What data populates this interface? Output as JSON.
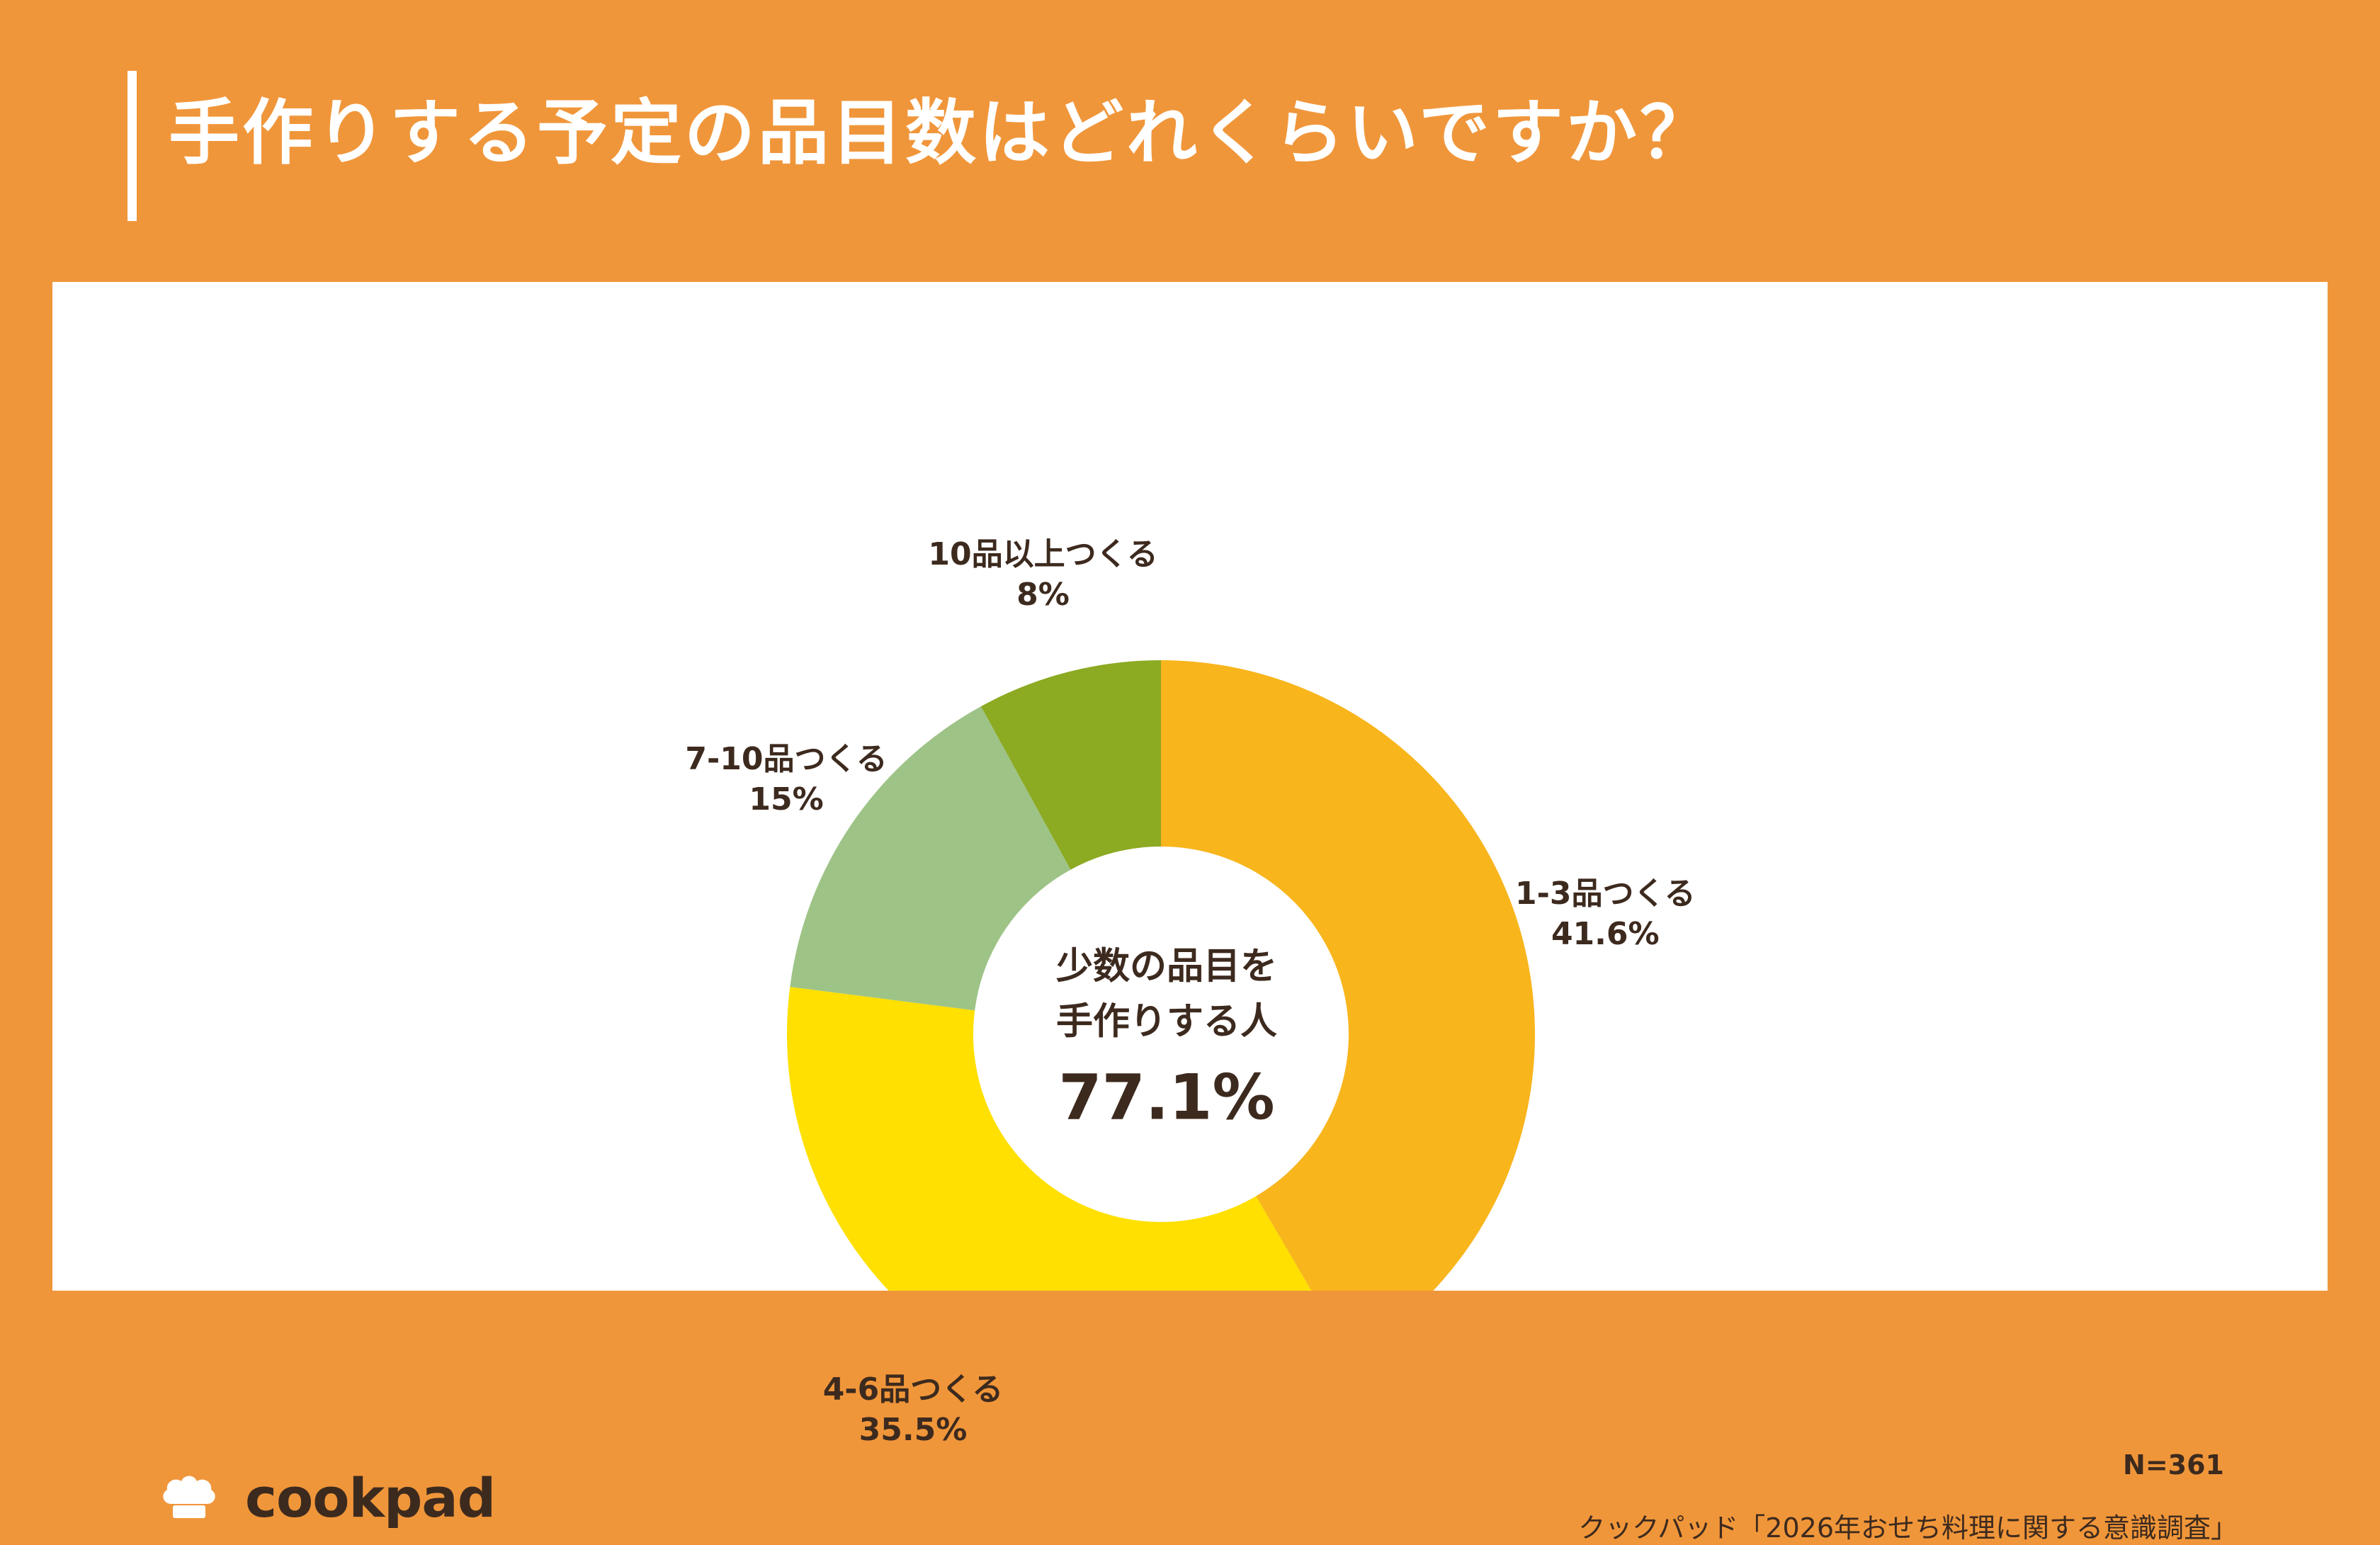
{
  "title": "手作りする予定の品目数はどれくらいですか？",
  "chart_data": {
    "type": "pie",
    "categories": [
      "1-3品つくる",
      "4-6品つくる",
      "7-10品つくる",
      "10品以上つくる"
    ],
    "values": [
      41.6,
      35.5,
      15,
      8
    ],
    "value_labels": [
      "41.6%",
      "35.5%",
      "15%",
      "8%"
    ],
    "colors": [
      "#F8B51C",
      "#FFE000",
      "#9EC387",
      "#8CAA22"
    ],
    "center_label_lines": [
      "少数の品目を",
      "手作りする人"
    ],
    "center_value": "77.1%"
  },
  "sample_size": "N=361",
  "source": "クックパッド「2026年おせち料理に関する意識調査」",
  "logo": {
    "text": "cookpad",
    "icon": "chef-hat-icon"
  },
  "theme": {
    "background": "#F0963A",
    "card": "#FFFFFF",
    "text": "#3D2A1E"
  }
}
